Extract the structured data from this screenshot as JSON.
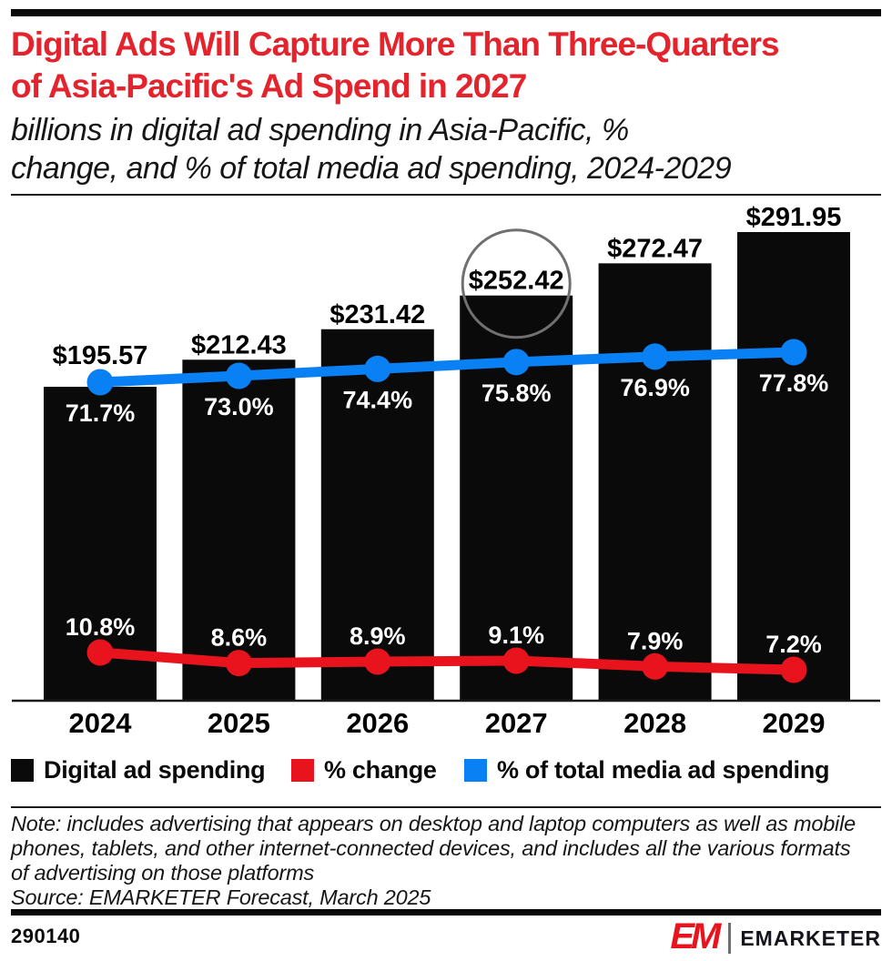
{
  "header": {
    "title_lines": [
      "Digital Ads Will Capture More Than Three-Quarters",
      "of Asia-Pacific's Ad Spend in 2027"
    ],
    "subtitle_lines": [
      "billions in digital ad spending in Asia-Pacific, %",
      "change, and % of total media ad spending, 2024-2029"
    ]
  },
  "chart_data": {
    "type": "bar",
    "title": "Digital Ads Will Capture More Than Three-Quarters of Asia-Pacific's Ad Spend in 2027",
    "subtitle": "billions in digital ad spending in Asia-Pacific, % change, and % of total media ad spending, 2024-2029",
    "categories": [
      "2024",
      "2025",
      "2026",
      "2027",
      "2028",
      "2029"
    ],
    "series": [
      {
        "name": "Digital ad spending",
        "type": "bar",
        "unit": "US$ billions",
        "color": "#0a0a0a",
        "values": [
          195.57,
          212.43,
          231.42,
          252.42,
          272.47,
          291.95
        ],
        "labels": [
          "$195.57",
          "$212.43",
          "$231.42",
          "$252.42",
          "$272.47",
          "$291.95"
        ]
      },
      {
        "name": "% change",
        "type": "line",
        "unit": "%",
        "color": "#e8131c",
        "values": [
          10.8,
          8.6,
          8.9,
          9.1,
          7.9,
          7.2
        ],
        "labels": [
          "10.8%",
          "8.6%",
          "8.9%",
          "9.1%",
          "7.9%",
          "7.2%"
        ]
      },
      {
        "name": "% of total media ad spending",
        "type": "line",
        "unit": "%",
        "color": "#0981f5",
        "values": [
          71.7,
          73.0,
          74.4,
          75.8,
          76.9,
          77.8
        ],
        "labels": [
          "71.7%",
          "73.0%",
          "74.4%",
          "75.8%",
          "76.9%",
          "77.8%"
        ]
      }
    ],
    "annotation": {
      "shape": "circle",
      "year": "2027",
      "series": "Digital ad spending",
      "highlighted_value": "$252.42"
    },
    "xlabel": "",
    "ylabel": "",
    "ylim": [
      0,
      292
    ],
    "grid": false,
    "legend_position": "bottom"
  },
  "legend": {
    "items": [
      {
        "label": "Digital ad spending",
        "color": "#0a0a0a"
      },
      {
        "label": "% change",
        "color": "#e8131c"
      },
      {
        "label": "% of total media ad spending",
        "color": "#0981f5"
      }
    ]
  },
  "footer": {
    "note_lines": [
      "Note: includes advertising that appears on desktop and laptop computers as well as mobile",
      "phones, tablets, and other internet-connected devices, and includes all the various formats",
      "of advertising on those platforms",
      "Source: EMARKETER Forecast, March 2025"
    ],
    "chart_number": "290140",
    "logo": {
      "monogram": "EM",
      "wordmark": "EMARKETER"
    }
  },
  "colors": {
    "title_red": "#e4232c",
    "accent_red": "#e8131c",
    "accent_blue": "#0981f5",
    "bar_black": "#0a0a0a",
    "annotation_circle_gray": "#707070"
  }
}
